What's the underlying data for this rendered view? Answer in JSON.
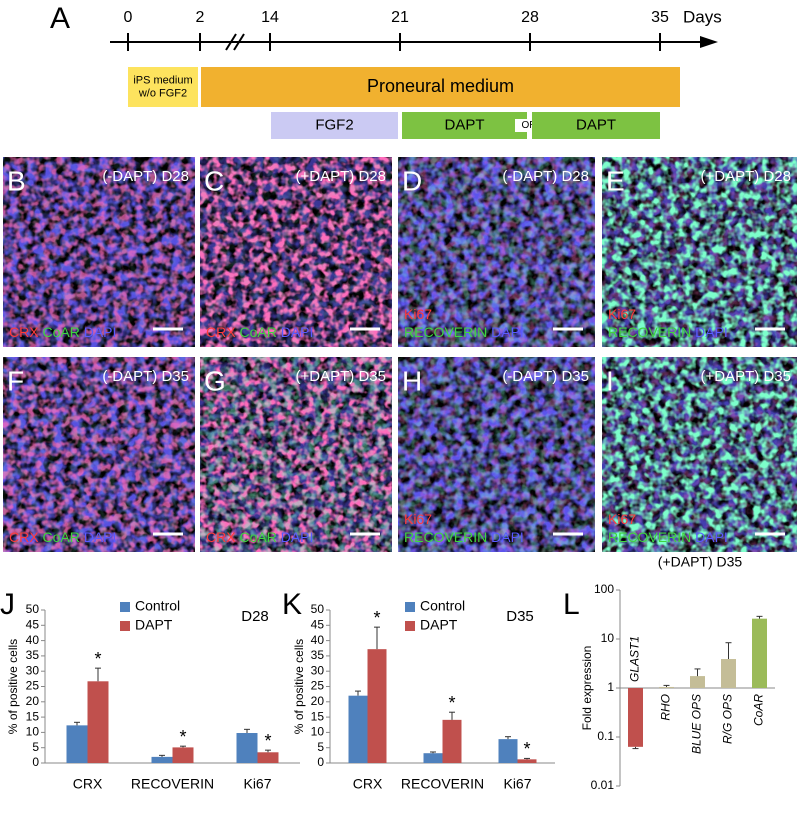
{
  "timeline": {
    "letter": "A",
    "days_label": "Days",
    "ticks": [
      0,
      2,
      14,
      21,
      28,
      35
    ],
    "phases": [
      {
        "lines": [
          "iPS medium",
          "w/o FGF2"
        ],
        "color": "#fde35e"
      },
      {
        "lines": [
          "Proneural medium"
        ],
        "color": "#f1b12f"
      },
      {
        "lines": [
          "FGF2"
        ],
        "color": "#cbcaf3"
      },
      {
        "lines": [
          "DAPT"
        ],
        "color": "#7dc242"
      },
      {
        "lines": [
          "OR"
        ],
        "color": "#ffffff"
      },
      {
        "lines": [
          "DAPT"
        ],
        "color": "#7dc242"
      }
    ]
  },
  "panels": [
    {
      "letter": "B",
      "condition": "(-DAPT) D28",
      "stain_lines": [
        [
          {
            "text": "CRX",
            "color": "#ff3b3b"
          },
          {
            "text": "CoAR",
            "color": "#3fd43f"
          },
          {
            "text": "DAPI",
            "color": "#5a5aff"
          }
        ]
      ]
    },
    {
      "letter": "C",
      "condition": "(+DAPT) D28",
      "stain_lines": [
        [
          {
            "text": "CRX",
            "color": "#ff3b3b"
          },
          {
            "text": "CoAR",
            "color": "#3fd43f"
          },
          {
            "text": "DAPI",
            "color": "#5a5aff"
          }
        ]
      ]
    },
    {
      "letter": "D",
      "condition": "(-DAPT) D28",
      "stain_lines": [
        [
          {
            "text": "Ki67",
            "color": "#ff3b3b"
          }
        ],
        [
          {
            "text": "RECOVERIN",
            "color": "#3fd43f"
          },
          {
            "text": "DAPI",
            "color": "#5a5aff"
          }
        ]
      ]
    },
    {
      "letter": "E",
      "condition": "(+DAPT) D28",
      "stain_lines": [
        [
          {
            "text": "Ki67",
            "color": "#ff3b3b"
          }
        ],
        [
          {
            "text": "RECOVERIN",
            "color": "#3fd43f"
          },
          {
            "text": "DAPI",
            "color": "#5a5aff"
          }
        ]
      ]
    },
    {
      "letter": "F",
      "condition": "(-DAPT) D35",
      "stain_lines": [
        [
          {
            "text": "CRX",
            "color": "#ff3b3b"
          },
          {
            "text": "CoAR",
            "color": "#3fd43f"
          },
          {
            "text": "DAPI",
            "color": "#5a5aff"
          }
        ]
      ]
    },
    {
      "letter": "G",
      "condition": "(+DAPT) D35",
      "stain_lines": [
        [
          {
            "text": "CRX",
            "color": "#ff3b3b"
          },
          {
            "text": "CoAR",
            "color": "#3fd43f"
          },
          {
            "text": "DAPI",
            "color": "#5a5aff"
          }
        ]
      ]
    },
    {
      "letter": "H",
      "condition": "(-DAPT) D35",
      "stain_lines": [
        [
          {
            "text": "Ki67",
            "color": "#ff3b3b"
          }
        ],
        [
          {
            "text": "RECOVERIN",
            "color": "#3fd43f"
          },
          {
            "text": "DAPI",
            "color": "#5a5aff"
          }
        ]
      ]
    },
    {
      "letter": "I",
      "condition": "(+DAPT) D35",
      "stain_lines": [
        [
          {
            "text": "Ki67",
            "color": "#ff3b3b"
          }
        ],
        [
          {
            "text": "RECOVERIN",
            "color": "#3fd43f"
          },
          {
            "text": "DAPI",
            "color": "#5a5aff"
          }
        ]
      ]
    }
  ],
  "chart_data": [
    {
      "type": "bar",
      "panel": "J",
      "annotation": "D28",
      "ylabel": "% of positive cells",
      "categories": [
        "CRX",
        "RECOVERIN",
        "Ki67"
      ],
      "series": [
        {
          "name": "Control",
          "color": "#4f81bd",
          "values": [
            12.3,
            2.0,
            9.8
          ],
          "errors": [
            1.0,
            0.5,
            1.2
          ]
        },
        {
          "name": "DAPT",
          "color": "#c0504d",
          "values": [
            26.7,
            5.1,
            3.5
          ],
          "errors": [
            4.3,
            0.4,
            0.7
          ],
          "markers": [
            "*",
            "*",
            "*"
          ]
        }
      ],
      "ylim": [
        0,
        50
      ],
      "yticks": [
        0,
        5,
        10,
        15,
        20,
        25,
        30,
        35,
        40,
        45,
        50
      ]
    },
    {
      "type": "bar",
      "panel": "K",
      "annotation": "D35",
      "ylabel": "% of positive cells",
      "categories": [
        "CRX",
        "RECOVERIN",
        "Ki67"
      ],
      "series": [
        {
          "name": "Control",
          "color": "#4f81bd",
          "values": [
            22.0,
            3.2,
            7.8
          ],
          "errors": [
            1.5,
            0.4,
            0.8
          ]
        },
        {
          "name": "DAPT",
          "color": "#c0504d",
          "values": [
            37.2,
            14.1,
            1.2
          ],
          "errors": [
            7.2,
            2.5,
            0.3
          ],
          "markers": [
            "*",
            "*",
            "*"
          ]
        }
      ],
      "ylim": [
        0,
        50
      ],
      "yticks": [
        0,
        5,
        10,
        15,
        20,
        25,
        30,
        35,
        40,
        45,
        50
      ]
    },
    {
      "type": "bar",
      "panel": "L",
      "annotation": "(+DAPT) D35",
      "ylabel": "Fold expression",
      "log_scale": true,
      "categories": [
        "GLAST1",
        "RHO",
        "BLUE OPS",
        "R/G OPS",
        "CoAR"
      ],
      "values": [
        0.063,
        1.05,
        1.75,
        3.9,
        26
      ],
      "errors": [
        0.005,
        0.08,
        0.7,
        4.5,
        3
      ],
      "colors": [
        "#c0504d",
        "#c4bd97",
        "#c4bd97",
        "#c4bd97",
        "#9bbb59"
      ],
      "ylim": [
        0.01,
        100
      ],
      "yticks": [
        0.01,
        0.1,
        1,
        10,
        100
      ]
    }
  ]
}
